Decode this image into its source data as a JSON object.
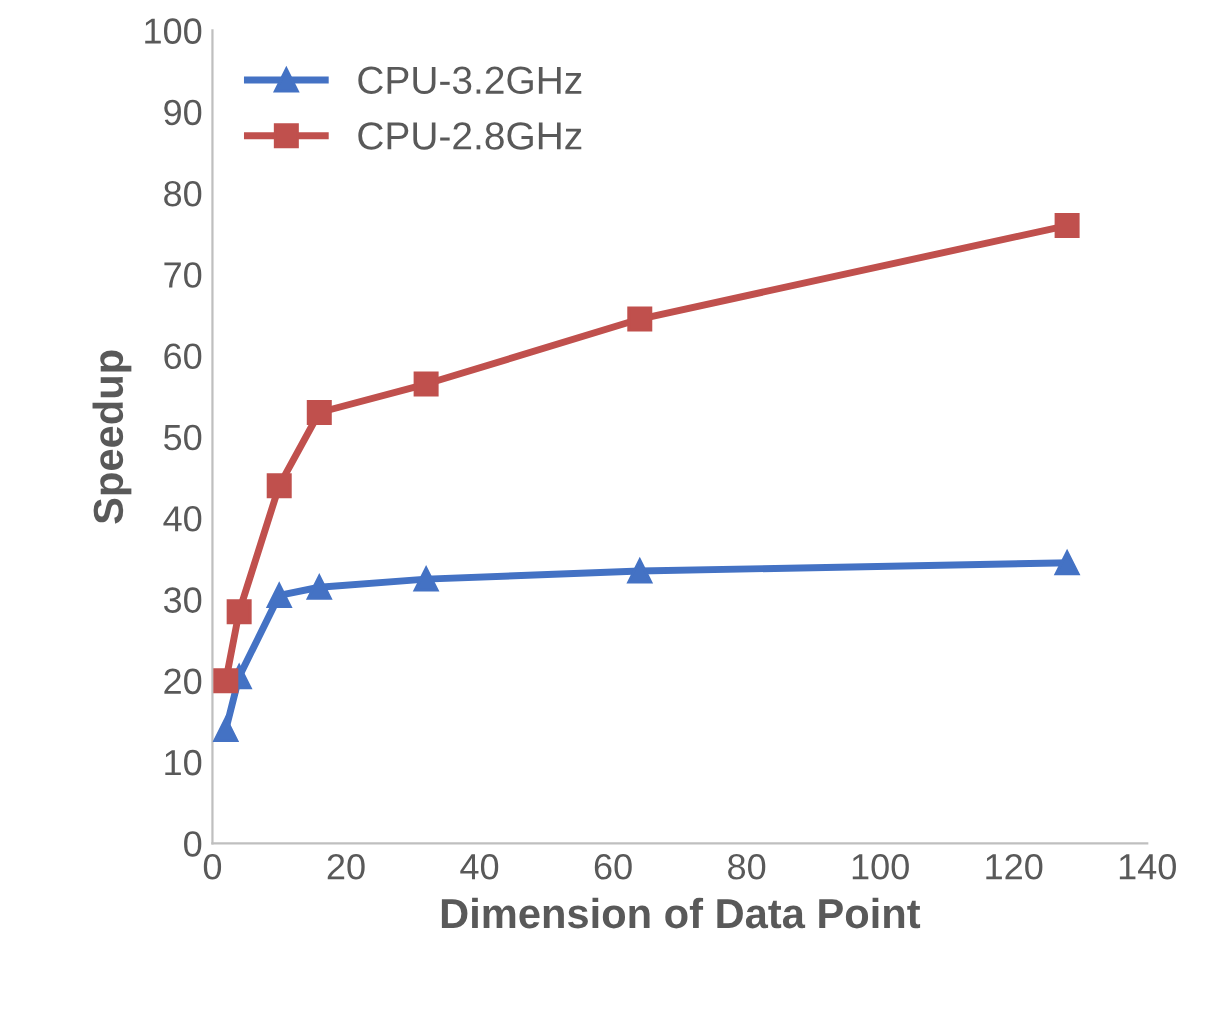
{
  "chart_data": {
    "type": "line",
    "xlabel": "Dimension of Data Point",
    "ylabel": "Speedup",
    "x": [
      2,
      4,
      10,
      16,
      32,
      64,
      128
    ],
    "series": [
      {
        "name": "CPU-3.2GHz",
        "color": "#4472c4",
        "marker": "triangle",
        "values": [
          14,
          20.5,
          30.5,
          31.5,
          32.5,
          33.5,
          34.5
        ]
      },
      {
        "name": "CPU-2.8GHz",
        "color": "#c0504d",
        "marker": "square",
        "values": [
          20,
          28.5,
          44,
          53,
          56.5,
          64.5,
          76
        ]
      }
    ],
    "xlim": [
      0,
      140
    ],
    "xticks": [
      0,
      20,
      40,
      60,
      80,
      100,
      120,
      140
    ],
    "ylim": [
      0,
      100
    ],
    "yticks": [
      0,
      10,
      20,
      30,
      40,
      50,
      60,
      70,
      80,
      90,
      100
    ],
    "grid": false,
    "legend": "top left",
    "line_style": "solid"
  }
}
